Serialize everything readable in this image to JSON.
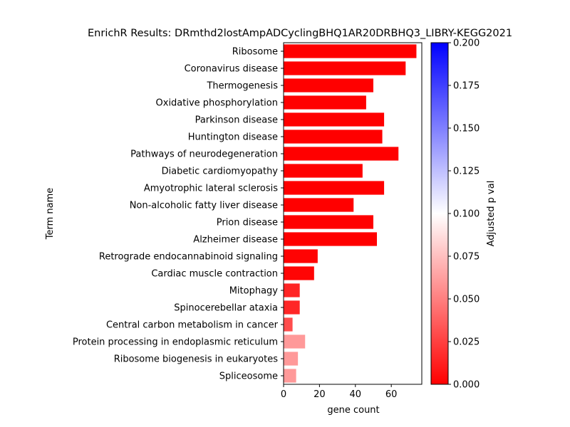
{
  "chart_data": {
    "type": "bar",
    "orientation": "horizontal",
    "title": "EnrichR Results: DRmthd2lostAmpADCyclingBHQ1AR20DRBHQ3_LIBRY-KEGG2021",
    "xlabel": "gene count",
    "ylabel": "Term name",
    "xlim": [
      0,
      77
    ],
    "xticks": [
      "0",
      "20",
      "40",
      "60"
    ],
    "categories": [
      "Ribosome",
      "Coronavirus disease",
      "Thermogenesis",
      "Oxidative phosphorylation",
      "Parkinson disease",
      "Huntington disease",
      "Pathways of neurodegeneration",
      "Diabetic cardiomyopathy",
      "Amyotrophic lateral sclerosis",
      "Non-alcoholic fatty liver disease",
      "Prion disease",
      "Alzheimer disease",
      "Retrograde endocannabinoid signaling",
      "Cardiac muscle contraction",
      "Mitophagy",
      "Spinocerebellar ataxia",
      "Central carbon metabolism in cancer",
      "Protein processing in endoplasmic reticulum",
      "Ribosome biogenesis in eukaryotes",
      "Spliceosome"
    ],
    "values": [
      74,
      68,
      50,
      46,
      56,
      55,
      64,
      44,
      56,
      39,
      50,
      52,
      19,
      17,
      9,
      9,
      5,
      12,
      8,
      7
    ],
    "adjusted_p": [
      0.0,
      0.0,
      0.0,
      0.0,
      0.0,
      0.0,
      0.0,
      0.0,
      0.0,
      0.0,
      0.0,
      0.0,
      0.001,
      0.002,
      0.014,
      0.015,
      0.03,
      0.06,
      0.06,
      0.06
    ],
    "colorbar": {
      "label": "Adjusted p val",
      "range": [
        0,
        0.2
      ],
      "ticks": [
        "0.000",
        "0.025",
        "0.050",
        "0.075",
        "0.100",
        "0.125",
        "0.150",
        "0.175",
        "0.200"
      ],
      "colors": [
        "#ff0000",
        "#ffffff",
        "#0000ff"
      ]
    },
    "grid": false,
    "legend": "colorbar-right"
  }
}
